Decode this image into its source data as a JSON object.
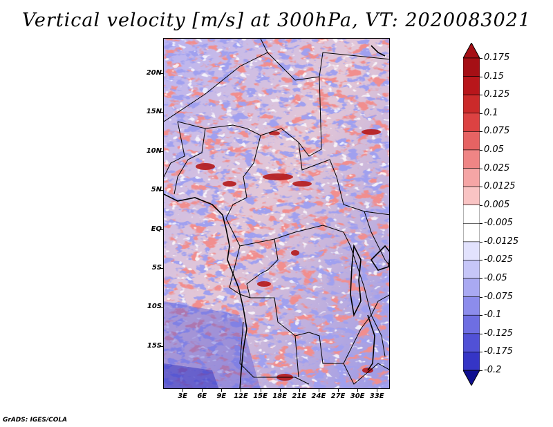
{
  "title": "Vertical velocity [m/s] at 300hPa, VT: 2020083021",
  "credit": "GrADS: IGES/COLA",
  "map": {
    "lat_range": [
      -20.5,
      24.5
    ],
    "lon_range": [
      0,
      35
    ],
    "lat_ticks": [
      {
        "value": 20,
        "label": "20N"
      },
      {
        "value": 15,
        "label": "15N"
      },
      {
        "value": 10,
        "label": "10N"
      },
      {
        "value": 5,
        "label": "5N"
      },
      {
        "value": 0,
        "label": "EQ"
      },
      {
        "value": -5,
        "label": "5S"
      },
      {
        "value": -10,
        "label": "10S"
      },
      {
        "value": -15,
        "label": "15S"
      }
    ],
    "lon_ticks": [
      {
        "value": 3,
        "label": "3E"
      },
      {
        "value": 6,
        "label": "6E"
      },
      {
        "value": 9,
        "label": "9E"
      },
      {
        "value": 12,
        "label": "12E"
      },
      {
        "value": 15,
        "label": "15E"
      },
      {
        "value": 18,
        "label": "18E"
      },
      {
        "value": 21,
        "label": "21E"
      },
      {
        "value": 24,
        "label": "24E"
      },
      {
        "value": 27,
        "label": "27E"
      },
      {
        "value": 30,
        "label": "30E"
      },
      {
        "value": 33,
        "label": "33E"
      }
    ]
  },
  "colorbar": {
    "units": "m/s",
    "levels": [
      {
        "label": "0.175",
        "color": "#a50f15"
      },
      {
        "label": "0.15",
        "color": "#b8161b"
      },
      {
        "label": "0.125",
        "color": "#cb2a2a"
      },
      {
        "label": "0.1",
        "color": "#dc4242"
      },
      {
        "label": "0.075",
        "color": "#e66363"
      },
      {
        "label": "0.05",
        "color": "#ef8585"
      },
      {
        "label": "0.025",
        "color": "#f5a5a5"
      },
      {
        "label": "0.0125",
        "color": "#f9c4c4"
      },
      {
        "label": "0.005",
        "color": "#fde2e2"
      },
      {
        "label": "-0.005",
        "color": "#ffffff"
      },
      {
        "label": "-0.0125",
        "color": "#e2e2fd"
      },
      {
        "label": "-0.025",
        "color": "#c6c6f8"
      },
      {
        "label": "-0.05",
        "color": "#a9a9f2"
      },
      {
        "label": "-0.075",
        "color": "#8c8cec"
      },
      {
        "label": "-0.1",
        "color": "#6e6ee2"
      },
      {
        "label": "-0.125",
        "color": "#5151d6"
      },
      {
        "label": "-0.175",
        "color": "#3535c6"
      },
      {
        "label": "-0.2",
        "color": "#1c1cb0"
      }
    ],
    "below_color": "#0f0f90"
  }
}
